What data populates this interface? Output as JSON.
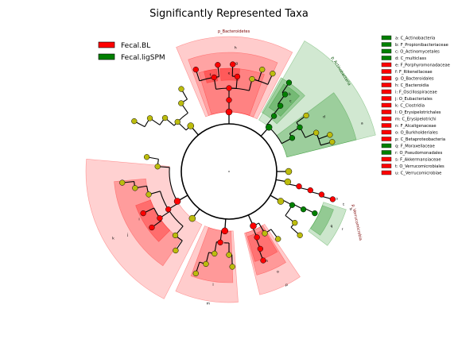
{
  "title": "Significantly Represented Taxa",
  "colors": {
    "bl": "#ff0000",
    "ligspm": "#008000",
    "neutral_node": "#bcbc0d",
    "red_band": "#ff0000",
    "green_band": "#008000"
  },
  "groups": [
    {
      "name": "Fecal.BL",
      "color": "#ff0000"
    },
    {
      "name": "Fecal.ligSPM",
      "color": "#008000"
    }
  ],
  "clades": [
    {
      "letter": "a",
      "label": "a: C_Actinobacteria",
      "group": "ligspm"
    },
    {
      "letter": "b",
      "label": "b: F_Propionibacteriaceae",
      "group": "ligspm"
    },
    {
      "letter": "c",
      "label": "c: O_Actinomycetales",
      "group": "ligspm"
    },
    {
      "letter": "d",
      "label": "d: C_multiclass",
      "group": "ligspm"
    },
    {
      "letter": "e",
      "label": "e: F_Porphyromonadaceae",
      "group": "bl"
    },
    {
      "letter": "f",
      "label": "f: F_Rikenellaceae",
      "group": "bl"
    },
    {
      "letter": "g",
      "label": "g: O_Bacteroidales",
      "group": "bl"
    },
    {
      "letter": "h",
      "label": "h: C_Bacteroidia",
      "group": "bl"
    },
    {
      "letter": "i",
      "label": "i: F_Oscillospiraceae",
      "group": "bl"
    },
    {
      "letter": "j",
      "label": "j: O_Eubacteriales",
      "group": "bl"
    },
    {
      "letter": "k",
      "label": "k: C_Clostridia",
      "group": "bl"
    },
    {
      "letter": "l",
      "label": "l: O_Erysipelotrichales",
      "group": "bl"
    },
    {
      "letter": "m",
      "label": "m: C_Erysipelotrichi",
      "group": "bl"
    },
    {
      "letter": "n",
      "label": "n: F_Alcaligenaceae",
      "group": "bl"
    },
    {
      "letter": "o",
      "label": "o: O_Burkholderiales",
      "group": "bl"
    },
    {
      "letter": "p",
      "label": "p: C_Betaproteobacteria",
      "group": "bl"
    },
    {
      "letter": "q",
      "label": "q: F_Moraxellaceae",
      "group": "ligspm"
    },
    {
      "letter": "r",
      "label": "r: O_Pseudomonadales",
      "group": "ligspm"
    },
    {
      "letter": "s",
      "label": "s: F_Akkermansiaceae",
      "group": "bl"
    },
    {
      "letter": "t",
      "label": "t: O_Verrucomicrobiales",
      "group": "bl"
    },
    {
      "letter": "u",
      "label": "u: C_Verrucomicrobiae",
      "group": "bl"
    }
  ],
  "phyla": [
    {
      "label": "p_Bacteroidetes",
      "group": "bl"
    },
    {
      "label": "p_Actinobacteria",
      "group": "ligspm"
    },
    {
      "label": "p_Verrucomicrobia",
      "group": "bl"
    }
  ]
}
